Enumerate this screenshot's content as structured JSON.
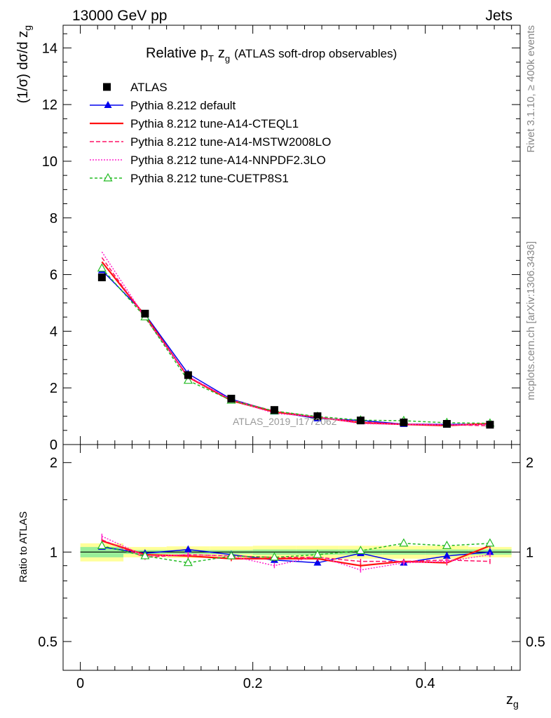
{
  "header": {
    "left": "13000 GeV pp",
    "right": "Jets"
  },
  "side_labels": {
    "rivet": "Rivet 3.1.10, ≥ 400k events",
    "mcplots": "mcplots.cern.ch [arXiv:1306.3436]"
  },
  "chart_data": {
    "type": "line",
    "title": "Relative p_T z_g (ATLAS soft-drop observables)",
    "title_parts": {
      "main": "Relative p",
      "sub_T": "T",
      "z": "z",
      "sub_g": "g",
      "rest": "(ATLAS soft-drop observables)"
    },
    "watermark": "ATLAS_2019_I1772062",
    "xlabel": "z_g",
    "xlabel_parts": {
      "z": "z",
      "sub": "g"
    },
    "ylabel": "(1/σ) dσ/d z_g",
    "ylabel_parts": {
      "main": "(1/σ) dσ/d z",
      "sub": "g"
    },
    "ratio_ylabel": "Ratio to ATLAS",
    "xlim": [
      -0.02,
      0.51
    ],
    "ylim_main": [
      0,
      14.8
    ],
    "ylim_ratio": [
      0.4,
      2.3
    ],
    "ratio_scale": "log",
    "x_ticks": [
      0,
      0.2,
      0.4
    ],
    "x_tick_labels": [
      "0",
      "0.2",
      "0.4"
    ],
    "y_ticks_main": [
      0,
      2,
      4,
      6,
      8,
      10,
      12,
      14
    ],
    "y_tick_labels_main": [
      "0",
      "2",
      "4",
      "6",
      "8",
      "10",
      "12",
      "14"
    ],
    "y_ticks_ratio": [
      0.5,
      1,
      2
    ],
    "y_tick_labels_ratio": [
      "0.5",
      "1",
      "2"
    ],
    "x": [
      0.025,
      0.075,
      0.125,
      0.175,
      0.225,
      0.275,
      0.325,
      0.375,
      0.425,
      0.475
    ],
    "bin_edges": [
      0,
      0.05,
      0.1,
      0.15,
      0.2,
      0.25,
      0.3,
      0.35,
      0.4,
      0.45,
      0.5
    ],
    "data": {
      "name": "ATLAS",
      "values": [
        5.9,
        4.62,
        2.45,
        1.62,
        1.22,
        1.0,
        0.85,
        0.78,
        0.73,
        0.7
      ],
      "band_inner": [
        0.04,
        0.015,
        0.015,
        0.015,
        0.02,
        0.02,
        0.02,
        0.02,
        0.02,
        0.02
      ],
      "band_outer": [
        0.07,
        0.04,
        0.045,
        0.045,
        0.05,
        0.05,
        0.05,
        0.05,
        0.05,
        0.04
      ]
    },
    "series": [
      {
        "name": "Pythia 8.212 default",
        "color": "#0000ee",
        "dash": "",
        "marker": "filled-triangle",
        "values": [
          6.15,
          4.6,
          2.5,
          1.6,
          1.16,
          0.92,
          0.85,
          0.72,
          0.71,
          0.72
        ],
        "ratio": [
          1.04,
          0.99,
          1.02,
          0.98,
          0.94,
          0.92,
          0.99,
          0.92,
          0.97,
          1.0
        ]
      },
      {
        "name": "Pythia 8.212 tune-A14-CTEQL1",
        "color": "#ff1111",
        "dash": "",
        "marker": "none",
        "values": [
          6.45,
          4.55,
          2.38,
          1.55,
          1.15,
          0.96,
          0.77,
          0.71,
          0.67,
          0.74
        ],
        "ratio": [
          1.09,
          0.98,
          0.97,
          0.95,
          0.95,
          0.95,
          0.9,
          0.93,
          0.92,
          1.05
        ]
      },
      {
        "name": "Pythia 8.212 tune-A14-MSTW2008LO",
        "color": "#ff1166",
        "dash": "6,3",
        "marker": "none",
        "values": [
          6.6,
          4.48,
          2.4,
          1.58,
          1.18,
          0.97,
          0.8,
          0.72,
          0.7,
          0.66
        ],
        "ratio": [
          1.1,
          0.96,
          0.98,
          0.97,
          0.96,
          0.96,
          0.93,
          0.93,
          0.94,
          0.93
        ]
      },
      {
        "name": "Pythia 8.212 tune-A14-NNPDF2.3LO",
        "color": "#ff22cc",
        "dash": "2,2",
        "marker": "none",
        "values": [
          6.8,
          4.5,
          2.4,
          1.58,
          1.1,
          0.98,
          0.74,
          0.71,
          0.69,
          0.71
        ],
        "ratio": [
          1.13,
          0.97,
          0.98,
          0.97,
          0.9,
          0.97,
          0.87,
          0.92,
          0.93,
          0.98
        ]
      },
      {
        "name": "Pythia 8.212 tune-CUETP8S1",
        "color": "#22bb22",
        "dash": "4,3",
        "marker": "open-triangle",
        "values": [
          6.22,
          4.5,
          2.26,
          1.56,
          1.18,
          0.99,
          0.86,
          0.84,
          0.77,
          0.75
        ],
        "ratio": [
          1.05,
          0.97,
          0.92,
          0.97,
          0.96,
          0.98,
          1.01,
          1.07,
          1.05,
          1.07
        ]
      }
    ]
  }
}
